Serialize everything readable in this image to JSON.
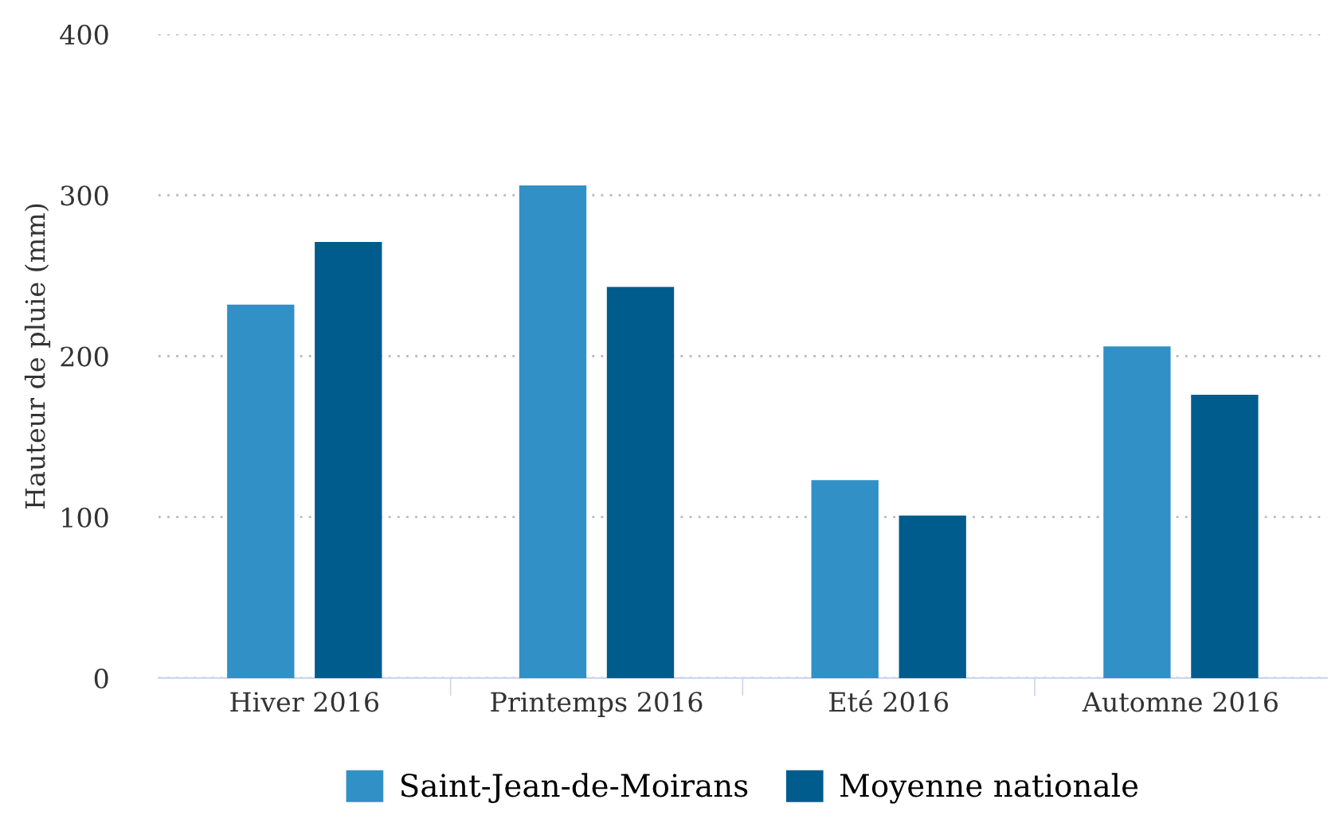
{
  "chart_data": {
    "type": "bar",
    "ylabel": "Hauteur de pluie (mm)",
    "categories": [
      "Hiver 2016",
      "Printemps 2016",
      "Eté 2016",
      "Automne 2016"
    ],
    "series": [
      {
        "name": "Saint-Jean-de-Moirans",
        "color": "#3190c5",
        "values": [
          232,
          306,
          123,
          206
        ]
      },
      {
        "name": "Moyenne nationale",
        "color": "#005c8c",
        "values": [
          271,
          243,
          101,
          176
        ]
      }
    ],
    "ylim": [
      0,
      400
    ],
    "yticks": [
      0,
      100,
      200,
      300,
      400
    ],
    "grid": "y",
    "legend": "bottom"
  }
}
